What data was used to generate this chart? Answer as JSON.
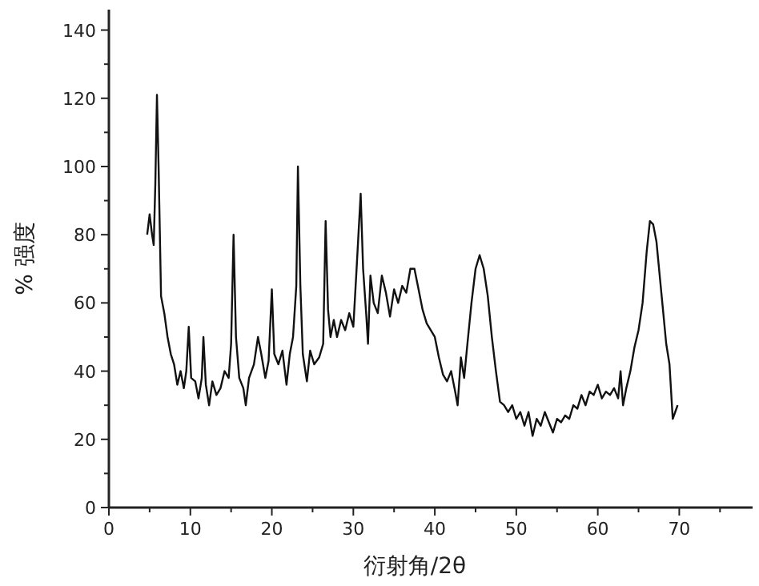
{
  "chart_data": {
    "type": "line",
    "xlabel": "衍射角/2θ",
    "ylabel": "% 强度",
    "xlim": [
      0,
      79
    ],
    "ylim": [
      0,
      146
    ],
    "xticks": [
      0,
      {
        "value": 5,
        "label": null
      },
      10,
      {
        "value": 15,
        "label": null
      },
      20,
      {
        "value": 25,
        "label": null
      },
      30,
      {
        "value": 35,
        "label": null
      },
      40,
      {
        "value": 45,
        "label": null
      },
      50,
      {
        "value": 55,
        "label": null
      },
      60,
      {
        "value": 65,
        "label": null
      },
      70,
      {
        "value": 75,
        "label": null
      }
    ],
    "yticks": [
      0,
      {
        "value": 10,
        "label": null
      },
      20,
      {
        "value": 30,
        "label": null
      },
      40,
      {
        "value": 50,
        "label": null
      },
      60,
      {
        "value": 70,
        "label": null
      },
      80,
      {
        "value": 90,
        "label": null
      },
      100,
      {
        "value": 110,
        "label": null
      },
      120,
      {
        "value": 130,
        "label": null
      },
      140
    ],
    "grid": false,
    "marker": "none",
    "line_style": "solid",
    "series": [
      {
        "color": "#111111",
        "x": [
          4.7,
          5.0,
          5.3,
          5.5,
          5.7,
          5.9,
          6.1,
          6.4,
          6.8,
          7.2,
          7.6,
          8.0,
          8.4,
          8.8,
          9.2,
          9.5,
          9.8,
          10.1,
          10.6,
          11.0,
          11.4,
          11.6,
          11.9,
          12.3,
          12.7,
          13.2,
          13.7,
          14.2,
          14.7,
          15.0,
          15.3,
          15.6,
          16.0,
          16.5,
          16.8,
          17.2,
          17.8,
          18.3,
          18.7,
          19.2,
          19.6,
          20.0,
          20.3,
          20.8,
          21.3,
          21.8,
          22.2,
          22.6,
          23.0,
          23.2,
          23.5,
          23.8,
          24.3,
          24.7,
          25.2,
          25.8,
          26.3,
          26.6,
          26.9,
          27.2,
          27.6,
          28.0,
          28.5,
          29.0,
          29.5,
          30.0,
          30.4,
          30.9,
          31.2,
          31.6,
          31.8,
          32.1,
          32.5,
          33.0,
          33.5,
          34.0,
          34.5,
          35.0,
          35.5,
          36.0,
          36.5,
          37.0,
          37.5,
          38.0,
          38.5,
          39.0,
          39.5,
          40.0,
          40.5,
          41.0,
          41.5,
          42.0,
          42.5,
          42.8,
          43.2,
          43.6,
          44.0,
          44.5,
          45.0,
          45.5,
          46.0,
          46.5,
          47.0,
          47.5,
          48.0,
          48.5,
          49.0,
          49.5,
          50.0,
          50.5,
          51.0,
          51.5,
          52.0,
          52.5,
          53.0,
          53.5,
          54.0,
          54.5,
          55.0,
          55.5,
          56.0,
          56.5,
          57.0,
          57.5,
          58.0,
          58.5,
          59.0,
          59.5,
          60.0,
          60.5,
          61.0,
          61.5,
          62.0,
          62.5,
          62.8,
          63.1,
          63.5,
          64.0,
          64.5,
          65.0,
          65.5,
          66.0,
          66.4,
          66.8,
          67.2,
          67.6,
          68.0,
          68.4,
          68.8,
          69.2,
          69.5,
          69.8
        ],
        "values": [
          80,
          86,
          80,
          77,
          95,
          121,
          100,
          62,
          57,
          50,
          45,
          42,
          36,
          40,
          35,
          40,
          53,
          38,
          37,
          32,
          38,
          50,
          36,
          30,
          37,
          33,
          35,
          40,
          38,
          48,
          80,
          50,
          38,
          35,
          30,
          38,
          42,
          50,
          45,
          38,
          43,
          64,
          45,
          42,
          46,
          36,
          45,
          50,
          65,
          100,
          65,
          45,
          37,
          46,
          42,
          44,
          48,
          84,
          58,
          50,
          55,
          50,
          55,
          52,
          57,
          53,
          70,
          92,
          70,
          56,
          48,
          68,
          60,
          57,
          68,
          63,
          56,
          64,
          60,
          65,
          63,
          70,
          70,
          64,
          58,
          54,
          52,
          50,
          44,
          39,
          37,
          40,
          34,
          30,
          44,
          38,
          48,
          60,
          70,
          74,
          70,
          62,
          50,
          40,
          31,
          30,
          28,
          30,
          26,
          28,
          24,
          28,
          21,
          26,
          24,
          28,
          25,
          22,
          26,
          25,
          27,
          26,
          30,
          29,
          33,
          30,
          34,
          33,
          36,
          32,
          34,
          33,
          35,
          32,
          40,
          30,
          35,
          40,
          47,
          52,
          60,
          75,
          84,
          83,
          78,
          68,
          58,
          48,
          42,
          26,
          28,
          30
        ]
      }
    ]
  }
}
